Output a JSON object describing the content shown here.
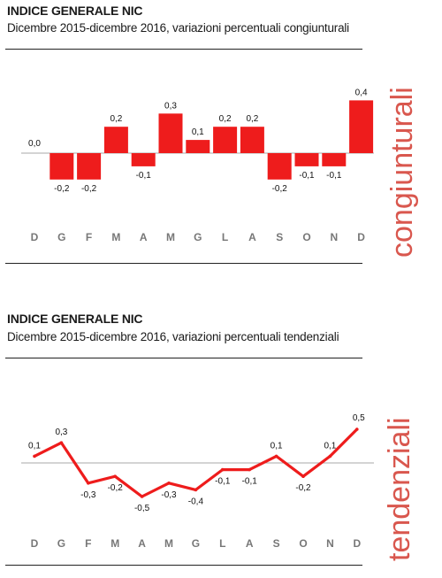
{
  "chart_data": [
    {
      "type": "bar",
      "title": "INDICE GENERALE NIC",
      "subtitle": "Dicembre 2015-dicembre 2016, variazioni percentuali congiunturali",
      "side_label": "congiunturali",
      "categories": [
        "D",
        "G",
        "F",
        "M",
        "A",
        "M",
        "G",
        "L",
        "A",
        "S",
        "O",
        "N",
        "D"
      ],
      "values": [
        0.0,
        -0.2,
        -0.2,
        0.2,
        -0.1,
        0.3,
        0.1,
        0.2,
        0.2,
        -0.2,
        -0.1,
        -0.1,
        0.4
      ],
      "value_labels": [
        "0,0",
        "-0,2",
        "-0,2",
        "0,2",
        "-0,1",
        "0,3",
        "0,1",
        "0,2",
        "0,2",
        "-0,2",
        "-0,1",
        "-0,1",
        "0,4"
      ],
      "ylim": [
        -0.2,
        0.4
      ],
      "color": "#ee1c1c",
      "grid": false
    },
    {
      "type": "line",
      "title": "INDICE GENERALE NIC",
      "subtitle": "Dicembre 2015-dicembre 2016, variazioni percentuali tendenziali",
      "side_label": "tendenziali",
      "categories": [
        "D",
        "G",
        "F",
        "M",
        "A",
        "M",
        "G",
        "L",
        "A",
        "S",
        "O",
        "N",
        "D"
      ],
      "values": [
        0.1,
        0.3,
        -0.3,
        -0.2,
        -0.5,
        -0.3,
        -0.4,
        -0.1,
        -0.1,
        0.1,
        -0.2,
        0.1,
        0.5
      ],
      "value_labels": [
        "0,1",
        "0,3",
        "-0,3",
        "-0,2",
        "-0,5",
        "-0,3",
        "-0,4",
        "-0,1",
        "-0,1",
        "0,1",
        "-0,2",
        "0,1",
        "0,5"
      ],
      "ylim": [
        -0.5,
        0.5
      ],
      "color": "#ee1c1c",
      "grid": false
    }
  ]
}
